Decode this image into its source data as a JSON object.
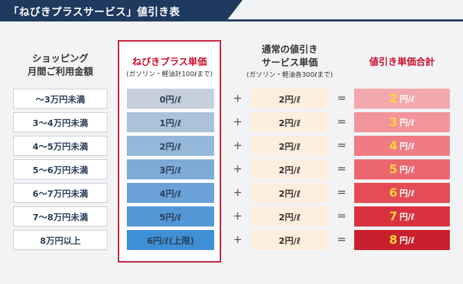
{
  "title": "「ねびきプラスサービス」値引き表",
  "headers": {
    "shopping": [
      "ショッピング",
      "月間ご利用金額"
    ],
    "nebiki": {
      "title": "ねびきプラス単価",
      "sub": "(ガソリン・軽油計100ℓまで)"
    },
    "normal": {
      "title": [
        "通常の値引き",
        "サービス単価"
      ],
      "sub": "(ガソリン・軽油各300ℓまで)"
    },
    "total": "値引き単価合計"
  },
  "operators": {
    "plus": "+",
    "equals": "="
  },
  "unit_suffix": "円/ℓ",
  "rows": [
    {
      "range": "〜3万円未満",
      "nebiki": "0円/ℓ",
      "normal": "2円/ℓ",
      "total": "2",
      "nebiki_color": "#c5d0dc",
      "total_color": "#f2a9ad"
    },
    {
      "range": "3〜4万円未満",
      "nebiki": "1円/ℓ",
      "normal": "2円/ℓ",
      "total": "3",
      "nebiki_color": "#abc2d8",
      "total_color": "#f1959a"
    },
    {
      "range": "4〜5万円未満",
      "nebiki": "2円/ℓ",
      "normal": "2円/ℓ",
      "total": "4",
      "nebiki_color": "#95b7d9",
      "total_color": "#ef7b83"
    },
    {
      "range": "5〜6万円未満",
      "nebiki": "3円/ℓ",
      "normal": "2円/ℓ",
      "total": "5",
      "nebiki_color": "#7eaad7",
      "total_color": "#ec6670"
    },
    {
      "range": "6〜7万円未満",
      "nebiki": "4円/ℓ",
      "normal": "2円/ℓ",
      "total": "6",
      "nebiki_color": "#6aa1d8",
      "total_color": "#e44b56"
    },
    {
      "range": "7〜8万円未満",
      "nebiki": "5円/ℓ",
      "normal": "2円/ℓ",
      "total": "7",
      "nebiki_color": "#5497d6",
      "total_color": "#d9323e"
    },
    {
      "range": "8万円以上",
      "nebiki": "6円/ℓ(上限)",
      "normal": "2円/ℓ",
      "total": "8",
      "nebiki_color": "#3f8fd6",
      "total_color": "#c8202c"
    }
  ]
}
